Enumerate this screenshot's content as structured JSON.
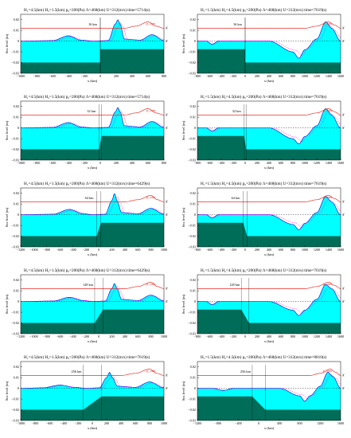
{
  "figure": {
    "common": {
      "ylabel": "Sea level (m)",
      "xlabel": "x (km)",
      "pres_label": "p_atm",
      "marker_label": "A'",
      "colors": {
        "water": "#00ffff",
        "shelf": "#006d59",
        "surface": "#0000cc",
        "pressure": "#e8302a",
        "dashed": "#ff00ff",
        "axis": "#000000"
      }
    },
    "panels": [
      {
        "header": "H₁=4.5(km)   H₂=1.5(km)   p₀=200(Pa)   Λ=468(km)   U=312(m/s)   time=5714(s)",
        "distance_label": "16 km",
        "xlim": [
          -1000,
          800
        ],
        "xticks": [
          -1000,
          -800,
          -600,
          -400,
          -200,
          0,
          200,
          400,
          600,
          800
        ],
        "ylim": [
          -0.03,
          0.025
        ],
        "yticks": [
          0.02,
          0.01,
          0,
          -0.01,
          -0.02,
          -0.03
        ]
      },
      {
        "header": "H₁=1.5(km)   H₂=4.5(km)   p₀=200(Pa)   Λ=468(km)   U=312(m/s)   time=7619(s)",
        "distance_label": "16 km",
        "xlim": [
          -800,
          1600
        ],
        "xticks": [
          -800,
          -600,
          -400,
          -200,
          0,
          200,
          400,
          600,
          800,
          1000,
          1200,
          1400,
          1600
        ],
        "ylim": [
          -0.03,
          0.025
        ],
        "yticks": [
          0.02,
          0.01,
          0,
          -0.01,
          -0.02,
          -0.03
        ]
      },
      {
        "header": "H₁=4.5(km)   H₂=1.5(km)   p₀=200(Pa)   Λ=468(km)   U=312(m/s)   time=5714(s)",
        "distance_label": "32 km",
        "xlim": [
          -1000,
          800
        ],
        "xticks": [
          -1000,
          -800,
          -600,
          -400,
          -200,
          0,
          200,
          400,
          600,
          800
        ],
        "ylim": [
          -0.03,
          0.025
        ],
        "yticks": [
          0.02,
          0.01,
          0,
          -0.01,
          -0.02,
          -0.03
        ]
      },
      {
        "header": "H₁=1.5(km)   H₂=4.5(km)   p₀=200(Pa)   Λ=468(km)   U=312(m/s)   time=7619(s)",
        "distance_label": "32 km",
        "xlim": [
          -800,
          1600
        ],
        "xticks": [
          -800,
          -600,
          -400,
          -200,
          0,
          200,
          400,
          600,
          800,
          1000,
          1200,
          1400,
          1600
        ],
        "ylim": [
          -0.03,
          0.025
        ],
        "yticks": [
          0.02,
          0.01,
          0,
          -0.01,
          -0.02,
          -0.03
        ]
      },
      {
        "header": "H₁=4.5(km)   H₂=1.5(km)   p₀=200(Pa)   Λ=468(km)   U=312(m/s)   time=6429(s)",
        "distance_label": "64 km",
        "xlim": [
          -1200,
          1000
        ],
        "xticks": [
          -1200,
          -1000,
          -800,
          -600,
          -400,
          -200,
          0,
          200,
          400,
          600,
          800,
          1000
        ],
        "ylim": [
          -0.03,
          0.025
        ],
        "yticks": [
          0.02,
          0.01,
          0,
          -0.01,
          -0.02,
          -0.03
        ]
      },
      {
        "header": "H₁=1.5(km)   H₂=4.5(km)   p₀=200(Pa)   Λ=468(km)   U=312(m/s)   time=7619(s)",
        "distance_label": "64 km",
        "xlim": [
          -800,
          1600
        ],
        "xticks": [
          -800,
          -600,
          -400,
          -200,
          0,
          200,
          400,
          600,
          800,
          1000,
          1200,
          1400,
          1600
        ],
        "ylim": [
          -0.03,
          0.025
        ],
        "yticks": [
          0.02,
          0.01,
          0,
          -0.01,
          -0.02,
          -0.03
        ]
      },
      {
        "header": "H₁=4.5(km)   H₂=1.5(km)   p₀=200(Pa)   Λ=468(km)   U=312(m/s)   time=6429(s)",
        "distance_label": "128 km",
        "xlim": [
          -1200,
          1000
        ],
        "xticks": [
          -1200,
          -1000,
          -800,
          -600,
          -400,
          -200,
          0,
          200,
          400,
          600,
          800,
          1000
        ],
        "ylim": [
          -0.03,
          0.025
        ],
        "yticks": [
          0.02,
          0.01,
          0,
          -0.01,
          -0.02,
          -0.03
        ]
      },
      {
        "header": "H₁=1.5(km)   H₂=4.5(km)   p₀=200(Pa)   Λ=468(km)   U=312(m/s)   time=7619(s)",
        "distance_label": "128 km",
        "xlim": [
          -800,
          1600
        ],
        "xticks": [
          -800,
          -600,
          -400,
          -200,
          0,
          200,
          400,
          600,
          800,
          1000,
          1200,
          1400,
          1600
        ],
        "ylim": [
          -0.03,
          0.025
        ],
        "yticks": [
          0.02,
          0.01,
          0,
          -0.01,
          -0.02,
          -0.03
        ]
      },
      {
        "header": "H₁=4.5(km)   H₂=1.5(km)   p₀=200(Pa)   Λ=468(km)   U=312(m/s)   time=7619(s)",
        "distance_label": "256 km",
        "xlim": [
          -1000,
          1000
        ],
        "xticks": [
          -1000,
          -800,
          -600,
          -400,
          -200,
          0,
          200,
          400,
          600,
          800,
          1000
        ],
        "ylim": [
          -0.03,
          0.025
        ],
        "yticks": [
          0.02,
          0.01,
          0,
          -0.01,
          -0.02,
          -0.03
        ]
      },
      {
        "header": "H₁=1.5(km)   H₂=4.5(km)   p₀=200(Pa)   Λ=468(km)   U=312(m/s)   time=8810(s)",
        "distance_label": "256 km",
        "xlim": [
          -1200,
          1600
        ],
        "xticks": [
          -1200,
          -800,
          -400,
          0,
          400,
          800,
          1200,
          1600
        ],
        "ylim": [
          -0.03,
          0.025
        ],
        "yticks": [
          0.02,
          0.01,
          0,
          -0.01,
          -0.02,
          -0.03
        ]
      }
    ]
  },
  "chart_data": [
    {
      "type": "area",
      "shelf": {
        "x": [
          -1000,
          0,
          0,
          800
        ],
        "depth_km": [
          4.5,
          4.5,
          1.5,
          1.5
        ]
      },
      "series": [
        {
          "x": [
            -1000,
            -600,
            -400,
            -250,
            -100,
            100,
            190,
            220,
            250,
            300,
            500,
            650,
            800
          ],
          "values": [
            0,
            0.0005,
            0.005,
            0.001,
            0,
            0.0005,
            0.016,
            0.02,
            0.016,
            0.002,
            0.001,
            0.006,
            0.0005
          ]
        },
        {
          "name": "p_atm",
          "x": [
            -1000,
            100,
            300,
            450,
            600,
            700,
            800
          ],
          "values": [
            0,
            0,
            0,
            0.002,
            0.006,
            0.002,
            0
          ]
        }
      ]
    },
    {
      "type": "area",
      "shelf": {
        "x": [
          -800,
          0,
          0,
          1600
        ],
        "depth_km": [
          1.5,
          1.5,
          4.5,
          4.5
        ]
      },
      "series": [
        {
          "x": [
            -800,
            -650,
            -550,
            -450,
            -200,
            0,
            400,
            800,
            900,
            1000,
            1200,
            1350,
            1450,
            1600
          ],
          "values": [
            0,
            0,
            -0.003,
            0,
            0,
            0,
            0,
            -0.01,
            -0.016,
            -0.008,
            0.002,
            0.018,
            0.012,
            0
          ]
        },
        {
          "name": "p_atm",
          "x": [
            -800,
            0,
            1000,
            1200,
            1400,
            1500,
            1600
          ],
          "values": [
            0,
            0,
            0,
            0.002,
            0.006,
            0.003,
            0
          ]
        }
      ]
    },
    {
      "type": "area",
      "shelf": {
        "x": [
          -1000,
          -16,
          16,
          800
        ],
        "depth_km": [
          4.5,
          4.5,
          1.5,
          1.5
        ]
      },
      "series": [
        {
          "x": [
            -1000,
            -600,
            -400,
            -250,
            -100,
            100,
            190,
            220,
            250,
            300,
            500,
            650,
            800
          ],
          "values": [
            0,
            0.0005,
            0.005,
            0.001,
            0,
            0.0005,
            0.015,
            0.019,
            0.015,
            0.002,
            0.001,
            0.006,
            0.0005
          ]
        },
        {
          "name": "p_atm",
          "x": [
            -1000,
            100,
            300,
            450,
            600,
            700,
            800
          ],
          "values": [
            0,
            0,
            0,
            0.002,
            0.006,
            0.002,
            0
          ]
        }
      ]
    },
    {
      "type": "area",
      "shelf": {
        "x": [
          -800,
          -16,
          16,
          1600
        ],
        "depth_km": [
          1.5,
          1.5,
          4.5,
          4.5
        ]
      },
      "series": [
        {
          "x": [
            -800,
            -650,
            -550,
            -450,
            -200,
            0,
            400,
            800,
            900,
            1000,
            1200,
            1350,
            1450,
            1600
          ],
          "values": [
            0,
            0,
            -0.003,
            0,
            0,
            0,
            0,
            -0.01,
            -0.015,
            -0.008,
            0.002,
            0.018,
            0.012,
            0
          ]
        },
        {
          "name": "p_atm",
          "x": [
            -800,
            0,
            1000,
            1200,
            1400,
            1500,
            1600
          ],
          "values": [
            0,
            0,
            0,
            0.002,
            0.006,
            0.003,
            0
          ]
        }
      ]
    },
    {
      "type": "area",
      "shelf": {
        "x": [
          -1200,
          -32,
          32,
          1000
        ],
        "depth_km": [
          4.5,
          4.5,
          1.5,
          1.5
        ]
      },
      "series": [
        {
          "x": [
            -1200,
            -700,
            -450,
            -250,
            -100,
            100,
            200,
            240,
            280,
            350,
            600,
            800,
            1000
          ],
          "values": [
            0,
            0.0005,
            0.005,
            0.001,
            0,
            0.0005,
            0.013,
            0.02,
            0.013,
            0.002,
            0.001,
            0.006,
            0.0005
          ]
        },
        {
          "name": "p_atm",
          "x": [
            -1200,
            200,
            400,
            600,
            800,
            900,
            1000
          ],
          "values": [
            0,
            0,
            0,
            0.002,
            0.006,
            0.002,
            0
          ]
        }
      ]
    },
    {
      "type": "area",
      "shelf": {
        "x": [
          -800,
          -32,
          32,
          1600
        ],
        "depth_km": [
          1.5,
          1.5,
          4.5,
          4.5
        ]
      },
      "series": [
        {
          "x": [
            -800,
            -650,
            -550,
            -450,
            -200,
            0,
            400,
            800,
            900,
            1000,
            1200,
            1350,
            1450,
            1600
          ],
          "values": [
            0,
            0,
            -0.003,
            0,
            0,
            0,
            0,
            -0.009,
            -0.014,
            -0.008,
            0.002,
            0.017,
            0.012,
            0
          ]
        },
        {
          "name": "p_atm",
          "x": [
            -800,
            0,
            1000,
            1200,
            1400,
            1500,
            1600
          ],
          "values": [
            0,
            0,
            0,
            0.002,
            0.006,
            0.003,
            0
          ]
        }
      ]
    },
    {
      "type": "area",
      "shelf": {
        "x": [
          -1200,
          -64,
          64,
          1000
        ],
        "depth_km": [
          4.5,
          4.5,
          1.5,
          1.5
        ]
      },
      "series": [
        {
          "x": [
            -1200,
            -700,
            -450,
            -250,
            -100,
            100,
            200,
            240,
            280,
            350,
            600,
            800,
            1000
          ],
          "values": [
            0,
            0.0005,
            0.004,
            0.001,
            0,
            0.0005,
            0.012,
            0.017,
            0.012,
            0.002,
            0.001,
            0.006,
            0.0005
          ]
        },
        {
          "name": "p_atm",
          "x": [
            -1200,
            200,
            400,
            600,
            800,
            900,
            1000
          ],
          "values": [
            0,
            0,
            0,
            0.002,
            0.006,
            0.002,
            0
          ]
        }
      ]
    },
    {
      "type": "area",
      "shelf": {
        "x": [
          -800,
          -64,
          64,
          1600
        ],
        "depth_km": [
          1.5,
          1.5,
          4.5,
          4.5
        ]
      },
      "series": [
        {
          "x": [
            -800,
            -650,
            -550,
            -450,
            -200,
            0,
            400,
            800,
            900,
            1000,
            1200,
            1350,
            1450,
            1600
          ],
          "values": [
            0,
            0,
            -0.003,
            0,
            0,
            0,
            0,
            -0.008,
            -0.013,
            -0.008,
            0.002,
            0.016,
            0.012,
            0
          ]
        },
        {
          "name": "p_atm",
          "x": [
            -800,
            0,
            1000,
            1200,
            1400,
            1500,
            1600
          ],
          "values": [
            0,
            0,
            0,
            0.002,
            0.006,
            0.003,
            0
          ]
        }
      ]
    },
    {
      "type": "area",
      "shelf": {
        "x": [
          -1000,
          -128,
          128,
          1000
        ],
        "depth_km": [
          4.5,
          4.5,
          1.5,
          1.5
        ]
      },
      "series": [
        {
          "x": [
            -1000,
            -700,
            -450,
            -250,
            -100,
            100,
            200,
            240,
            280,
            350,
            600,
            800,
            1000
          ],
          "values": [
            0,
            0.0005,
            0.003,
            0.001,
            0,
            0.0005,
            0.01,
            0.015,
            0.01,
            0.002,
            0.001,
            0.006,
            0.0005
          ]
        },
        {
          "name": "p_atm",
          "x": [
            -1000,
            200,
            400,
            600,
            800,
            900,
            1000
          ],
          "values": [
            0,
            0,
            0,
            0.002,
            0.006,
            0.002,
            0
          ]
        }
      ]
    },
    {
      "type": "area",
      "shelf": {
        "x": [
          -1200,
          -128,
          128,
          1600
        ],
        "depth_km": [
          1.5,
          1.5,
          4.5,
          4.5
        ]
      },
      "series": [
        {
          "x": [
            -1200,
            -900,
            -700,
            -500,
            -200,
            0,
            400,
            800,
            900,
            1000,
            1200,
            1350,
            1450,
            1600
          ],
          "values": [
            0,
            0,
            -0.002,
            0,
            0,
            0,
            0,
            -0.007,
            -0.012,
            -0.007,
            0.002,
            0.015,
            0.011,
            0
          ]
        },
        {
          "name": "p_atm",
          "x": [
            -1200,
            0,
            1000,
            1200,
            1400,
            1500,
            1600
          ],
          "values": [
            0,
            0,
            0,
            0.002,
            0.006,
            0.003,
            0
          ]
        }
      ]
    }
  ]
}
